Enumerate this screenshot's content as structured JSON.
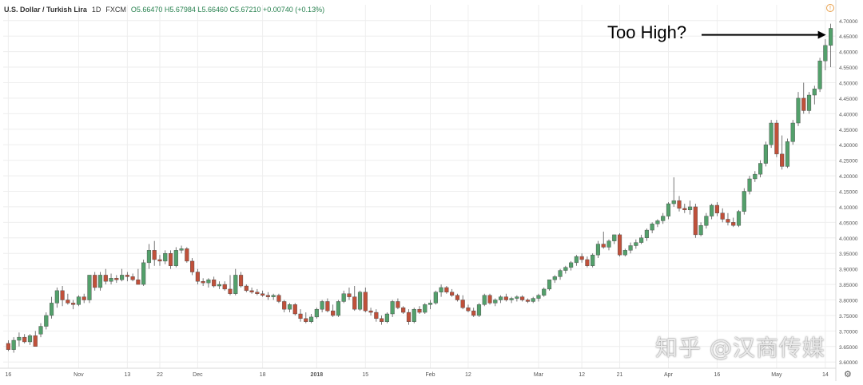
{
  "header": {
    "symbol": "U.S. Dollar / Turkish Lira",
    "interval": "1D",
    "exchange": "FXCM",
    "ohlc": "O5.66470  H5.67984  L5.66460  C5.67210  +0.00740 (+0.13%)",
    "warning_icon": "info-icon"
  },
  "annotation": {
    "text": "Too High?"
  },
  "watermark": "知乎 @汉商传媒",
  "colors": {
    "up": "#53a06b",
    "down": "#c0503a",
    "grid": "#eeeeee",
    "axis_text": "#555555"
  },
  "chart_data": {
    "type": "candlestick",
    "title": "",
    "xlabel": "",
    "ylabel": "",
    "ylim": [
      3.58,
      4.72
    ],
    "y_ticks": [
      "3.60000",
      "3.65000",
      "3.70000",
      "3.75000",
      "3.80000",
      "3.85000",
      "3.90000",
      "3.95000",
      "4.00000",
      "4.05000",
      "4.10000",
      "4.15000",
      "4.20000",
      "4.25000",
      "4.30000",
      "4.35000",
      "4.40000",
      "4.45000",
      "4.50000",
      "4.55000",
      "4.60000",
      "4.65000",
      "4.70000"
    ],
    "x_ticks": [
      "16",
      "Nov",
      "13",
      "22",
      "Dec",
      "18",
      "2018",
      "15",
      "Feb",
      "12",
      "Mar",
      "12",
      "21",
      "Apr",
      "16",
      "May",
      "14"
    ],
    "x_tick_index": [
      0,
      13,
      22,
      28,
      35,
      47,
      57,
      66,
      78,
      85,
      98,
      106,
      113,
      122,
      131,
      142,
      151
    ],
    "grid": true,
    "series": [
      {
        "o": 3.66,
        "h": 3.67,
        "l": 3.635,
        "c": 3.64
      },
      {
        "o": 3.64,
        "h": 3.68,
        "l": 3.63,
        "c": 3.67
      },
      {
        "o": 3.67,
        "h": 3.695,
        "l": 3.65,
        "c": 3.68
      },
      {
        "o": 3.68,
        "h": 3.69,
        "l": 3.66,
        "c": 3.665
      },
      {
        "o": 3.665,
        "h": 3.69,
        "l": 3.655,
        "c": 3.685
      },
      {
        "o": 3.685,
        "h": 3.7,
        "l": 3.66,
        "c": 3.65
      },
      {
        "o": 3.69,
        "h": 3.725,
        "l": 3.68,
        "c": 3.715
      },
      {
        "o": 3.715,
        "h": 3.76,
        "l": 3.705,
        "c": 3.75
      },
      {
        "o": 3.75,
        "h": 3.81,
        "l": 3.74,
        "c": 3.79
      },
      {
        "o": 3.79,
        "h": 3.84,
        "l": 3.775,
        "c": 3.83
      },
      {
        "o": 3.83,
        "h": 3.845,
        "l": 3.78,
        "c": 3.8
      },
      {
        "o": 3.8,
        "h": 3.82,
        "l": 3.785,
        "c": 3.79
      },
      {
        "o": 3.79,
        "h": 3.8,
        "l": 3.77,
        "c": 3.785
      },
      {
        "o": 3.785,
        "h": 3.815,
        "l": 3.78,
        "c": 3.81
      },
      {
        "o": 3.81,
        "h": 3.82,
        "l": 3.79,
        "c": 3.8
      },
      {
        "o": 3.8,
        "h": 3.87,
        "l": 3.79,
        "c": 3.88
      },
      {
        "o": 3.88,
        "h": 3.89,
        "l": 3.83,
        "c": 3.84
      },
      {
        "o": 3.84,
        "h": 3.89,
        "l": 3.83,
        "c": 3.88
      },
      {
        "o": 3.88,
        "h": 3.9,
        "l": 3.85,
        "c": 3.86
      },
      {
        "o": 3.86,
        "h": 3.885,
        "l": 3.85,
        "c": 3.87
      },
      {
        "o": 3.87,
        "h": 3.88,
        "l": 3.855,
        "c": 3.865
      },
      {
        "o": 3.865,
        "h": 3.9,
        "l": 3.86,
        "c": 3.88
      },
      {
        "o": 3.88,
        "h": 3.89,
        "l": 3.86,
        "c": 3.875
      },
      {
        "o": 3.875,
        "h": 3.885,
        "l": 3.86,
        "c": 3.865
      },
      {
        "o": 3.865,
        "h": 3.9,
        "l": 3.85,
        "c": 3.85
      },
      {
        "o": 3.85,
        "h": 3.93,
        "l": 3.845,
        "c": 3.92
      },
      {
        "o": 3.92,
        "h": 3.98,
        "l": 3.9,
        "c": 3.96
      },
      {
        "o": 3.96,
        "h": 3.99,
        "l": 3.91,
        "c": 3.93
      },
      {
        "o": 3.93,
        "h": 3.945,
        "l": 3.91,
        "c": 3.925
      },
      {
        "o": 3.925,
        "h": 3.96,
        "l": 3.915,
        "c": 3.95
      },
      {
        "o": 3.95,
        "h": 3.96,
        "l": 3.9,
        "c": 3.91
      },
      {
        "o": 3.91,
        "h": 3.97,
        "l": 3.905,
        "c": 3.96
      },
      {
        "o": 3.96,
        "h": 3.975,
        "l": 3.95,
        "c": 3.965
      },
      {
        "o": 3.965,
        "h": 3.97,
        "l": 3.92,
        "c": 3.925
      },
      {
        "o": 3.925,
        "h": 3.935,
        "l": 3.88,
        "c": 3.89
      },
      {
        "o": 3.89,
        "h": 3.9,
        "l": 3.85,
        "c": 3.86
      },
      {
        "o": 3.86,
        "h": 3.87,
        "l": 3.845,
        "c": 3.855
      },
      {
        "o": 3.855,
        "h": 3.87,
        "l": 3.84,
        "c": 3.865
      },
      {
        "o": 3.865,
        "h": 3.875,
        "l": 3.84,
        "c": 3.845
      },
      {
        "o": 3.845,
        "h": 3.86,
        "l": 3.835,
        "c": 3.85
      },
      {
        "o": 3.85,
        "h": 3.86,
        "l": 3.83,
        "c": 3.835
      },
      {
        "o": 3.835,
        "h": 3.88,
        "l": 3.815,
        "c": 3.82
      },
      {
        "o": 3.82,
        "h": 3.9,
        "l": 3.815,
        "c": 3.88
      },
      {
        "o": 3.88,
        "h": 3.89,
        "l": 3.84,
        "c": 3.845
      },
      {
        "o": 3.845,
        "h": 3.85,
        "l": 3.825,
        "c": 3.83
      },
      {
        "o": 3.83,
        "h": 3.84,
        "l": 3.82,
        "c": 3.825
      },
      {
        "o": 3.825,
        "h": 3.835,
        "l": 3.815,
        "c": 3.82
      },
      {
        "o": 3.82,
        "h": 3.83,
        "l": 3.81,
        "c": 3.815
      },
      {
        "o": 3.815,
        "h": 3.825,
        "l": 3.8,
        "c": 3.81
      },
      {
        "o": 3.81,
        "h": 3.82,
        "l": 3.8,
        "c": 3.815
      },
      {
        "o": 3.815,
        "h": 3.82,
        "l": 3.79,
        "c": 3.795
      },
      {
        "o": 3.795,
        "h": 3.8,
        "l": 3.76,
        "c": 3.77
      },
      {
        "o": 3.77,
        "h": 3.79,
        "l": 3.76,
        "c": 3.785
      },
      {
        "o": 3.785,
        "h": 3.79,
        "l": 3.75,
        "c": 3.755
      },
      {
        "o": 3.755,
        "h": 3.77,
        "l": 3.73,
        "c": 3.74
      },
      {
        "o": 3.74,
        "h": 3.76,
        "l": 3.725,
        "c": 3.73
      },
      {
        "o": 3.73,
        "h": 3.755,
        "l": 3.725,
        "c": 3.745
      },
      {
        "o": 3.745,
        "h": 3.775,
        "l": 3.74,
        "c": 3.77
      },
      {
        "o": 3.77,
        "h": 3.8,
        "l": 3.76,
        "c": 3.795
      },
      {
        "o": 3.795,
        "h": 3.805,
        "l": 3.76,
        "c": 3.765
      },
      {
        "o": 3.765,
        "h": 3.785,
        "l": 3.745,
        "c": 3.75
      },
      {
        "o": 3.75,
        "h": 3.8,
        "l": 3.745,
        "c": 3.795
      },
      {
        "o": 3.795,
        "h": 3.83,
        "l": 3.79,
        "c": 3.82
      },
      {
        "o": 3.82,
        "h": 3.84,
        "l": 3.8,
        "c": 3.81
      },
      {
        "o": 3.81,
        "h": 3.845,
        "l": 3.765,
        "c": 3.77
      },
      {
        "o": 3.77,
        "h": 3.83,
        "l": 3.765,
        "c": 3.825
      },
      {
        "o": 3.825,
        "h": 3.84,
        "l": 3.76,
        "c": 3.765
      },
      {
        "o": 3.765,
        "h": 3.775,
        "l": 3.75,
        "c": 3.76
      },
      {
        "o": 3.76,
        "h": 3.77,
        "l": 3.73,
        "c": 3.74
      },
      {
        "o": 3.74,
        "h": 3.75,
        "l": 3.72,
        "c": 3.73
      },
      {
        "o": 3.73,
        "h": 3.76,
        "l": 3.725,
        "c": 3.755
      },
      {
        "o": 3.755,
        "h": 3.8,
        "l": 3.745,
        "c": 3.795
      },
      {
        "o": 3.795,
        "h": 3.805,
        "l": 3.77,
        "c": 3.775
      },
      {
        "o": 3.775,
        "h": 3.78,
        "l": 3.755,
        "c": 3.76
      },
      {
        "o": 3.76,
        "h": 3.77,
        "l": 3.72,
        "c": 3.73
      },
      {
        "o": 3.73,
        "h": 3.775,
        "l": 3.725,
        "c": 3.77
      },
      {
        "o": 3.77,
        "h": 3.78,
        "l": 3.755,
        "c": 3.76
      },
      {
        "o": 3.76,
        "h": 3.79,
        "l": 3.755,
        "c": 3.785
      },
      {
        "o": 3.785,
        "h": 3.8,
        "l": 3.77,
        "c": 3.79
      },
      {
        "o": 3.79,
        "h": 3.83,
        "l": 3.785,
        "c": 3.825
      },
      {
        "o": 3.825,
        "h": 3.85,
        "l": 3.81,
        "c": 3.84
      },
      {
        "o": 3.84,
        "h": 3.845,
        "l": 3.82,
        "c": 3.825
      },
      {
        "o": 3.825,
        "h": 3.835,
        "l": 3.81,
        "c": 3.815
      },
      {
        "o": 3.815,
        "h": 3.82,
        "l": 3.795,
        "c": 3.8
      },
      {
        "o": 3.8,
        "h": 3.815,
        "l": 3.77,
        "c": 3.775
      },
      {
        "o": 3.775,
        "h": 3.785,
        "l": 3.76,
        "c": 3.765
      },
      {
        "o": 3.765,
        "h": 3.775,
        "l": 3.745,
        "c": 3.75
      },
      {
        "o": 3.75,
        "h": 3.79,
        "l": 3.745,
        "c": 3.785
      },
      {
        "o": 3.785,
        "h": 3.82,
        "l": 3.78,
        "c": 3.815
      },
      {
        "o": 3.815,
        "h": 3.82,
        "l": 3.785,
        "c": 3.79
      },
      {
        "o": 3.79,
        "h": 3.805,
        "l": 3.78,
        "c": 3.8
      },
      {
        "o": 3.8,
        "h": 3.815,
        "l": 3.79,
        "c": 3.81
      },
      {
        "o": 3.81,
        "h": 3.82,
        "l": 3.795,
        "c": 3.8
      },
      {
        "o": 3.8,
        "h": 3.81,
        "l": 3.79,
        "c": 3.805
      },
      {
        "o": 3.805,
        "h": 3.815,
        "l": 3.795,
        "c": 3.81
      },
      {
        "o": 3.81,
        "h": 3.815,
        "l": 3.795,
        "c": 3.8
      },
      {
        "o": 3.8,
        "h": 3.805,
        "l": 3.79,
        "c": 3.795
      },
      {
        "o": 3.795,
        "h": 3.81,
        "l": 3.79,
        "c": 3.805
      },
      {
        "o": 3.805,
        "h": 3.82,
        "l": 3.795,
        "c": 3.815
      },
      {
        "o": 3.815,
        "h": 3.84,
        "l": 3.81,
        "c": 3.835
      },
      {
        "o": 3.835,
        "h": 3.86,
        "l": 3.83,
        "c": 3.865
      },
      {
        "o": 3.865,
        "h": 3.88,
        "l": 3.855,
        "c": 3.875
      },
      {
        "o": 3.875,
        "h": 3.9,
        "l": 3.865,
        "c": 3.895
      },
      {
        "o": 3.895,
        "h": 3.91,
        "l": 3.885,
        "c": 3.905
      },
      {
        "o": 3.905,
        "h": 3.925,
        "l": 3.895,
        "c": 3.92
      },
      {
        "o": 3.92,
        "h": 3.945,
        "l": 3.91,
        "c": 3.94
      },
      {
        "o": 3.94,
        "h": 3.95,
        "l": 3.92,
        "c": 3.93
      },
      {
        "o": 3.93,
        "h": 3.94,
        "l": 3.905,
        "c": 3.91
      },
      {
        "o": 3.91,
        "h": 3.95,
        "l": 3.905,
        "c": 3.945
      },
      {
        "o": 3.945,
        "h": 3.99,
        "l": 3.935,
        "c": 3.98
      },
      {
        "o": 3.98,
        "h": 4.02,
        "l": 3.965,
        "c": 3.97
      },
      {
        "o": 3.97,
        "h": 3.995,
        "l": 3.96,
        "c": 3.99
      },
      {
        "o": 3.99,
        "h": 4.01,
        "l": 3.98,
        "c": 4.01
      },
      {
        "o": 4.01,
        "h": 4.015,
        "l": 3.94,
        "c": 3.945
      },
      {
        "o": 3.945,
        "h": 3.965,
        "l": 3.94,
        "c": 3.96
      },
      {
        "o": 3.96,
        "h": 3.985,
        "l": 3.95,
        "c": 3.975
      },
      {
        "o": 3.975,
        "h": 3.995,
        "l": 3.965,
        "c": 3.985
      },
      {
        "o": 3.985,
        "h": 4.01,
        "l": 3.98,
        "c": 4.0
      },
      {
        "o": 4.0,
        "h": 4.03,
        "l": 3.99,
        "c": 4.025
      },
      {
        "o": 4.025,
        "h": 4.05,
        "l": 4.015,
        "c": 4.045
      },
      {
        "o": 4.045,
        "h": 4.06,
        "l": 4.035,
        "c": 4.055
      },
      {
        "o": 4.055,
        "h": 4.08,
        "l": 4.045,
        "c": 4.07
      },
      {
        "o": 4.07,
        "h": 4.115,
        "l": 4.06,
        "c": 4.11
      },
      {
        "o": 4.11,
        "h": 4.195,
        "l": 4.1,
        "c": 4.12
      },
      {
        "o": 4.12,
        "h": 4.135,
        "l": 4.085,
        "c": 4.095
      },
      {
        "o": 4.095,
        "h": 4.11,
        "l": 4.08,
        "c": 4.09
      },
      {
        "o": 4.09,
        "h": 4.12,
        "l": 4.075,
        "c": 4.1
      },
      {
        "o": 4.1,
        "h": 4.11,
        "l": 4.0,
        "c": 4.01
      },
      {
        "o": 4.01,
        "h": 4.05,
        "l": 4.005,
        "c": 4.04
      },
      {
        "o": 4.04,
        "h": 4.08,
        "l": 4.03,
        "c": 4.07
      },
      {
        "o": 4.07,
        "h": 4.11,
        "l": 4.06,
        "c": 4.105
      },
      {
        "o": 4.105,
        "h": 4.115,
        "l": 4.07,
        "c": 4.08
      },
      {
        "o": 4.08,
        "h": 4.095,
        "l": 4.05,
        "c": 4.06
      },
      {
        "o": 4.06,
        "h": 4.08,
        "l": 4.04,
        "c": 4.05
      },
      {
        "o": 4.05,
        "h": 4.065,
        "l": 4.035,
        "c": 4.04
      },
      {
        "o": 4.04,
        "h": 4.09,
        "l": 4.035,
        "c": 4.085
      },
      {
        "o": 4.085,
        "h": 4.16,
        "l": 4.075,
        "c": 4.15
      },
      {
        "o": 4.15,
        "h": 4.2,
        "l": 4.14,
        "c": 4.19
      },
      {
        "o": 4.19,
        "h": 4.215,
        "l": 4.18,
        "c": 4.205
      },
      {
        "o": 4.205,
        "h": 4.25,
        "l": 4.195,
        "c": 4.24
      },
      {
        "o": 4.24,
        "h": 4.31,
        "l": 4.23,
        "c": 4.3
      },
      {
        "o": 4.3,
        "h": 4.38,
        "l": 4.29,
        "c": 4.37
      },
      {
        "o": 4.37,
        "h": 4.38,
        "l": 4.26,
        "c": 4.27
      },
      {
        "o": 4.27,
        "h": 4.33,
        "l": 4.22,
        "c": 4.23
      },
      {
        "o": 4.23,
        "h": 4.32,
        "l": 4.225,
        "c": 4.31
      },
      {
        "o": 4.31,
        "h": 4.38,
        "l": 4.3,
        "c": 4.37
      },
      {
        "o": 4.37,
        "h": 4.47,
        "l": 4.36,
        "c": 4.45
      },
      {
        "o": 4.45,
        "h": 4.5,
        "l": 4.4,
        "c": 4.41
      },
      {
        "o": 4.41,
        "h": 4.47,
        "l": 4.4,
        "c": 4.46
      },
      {
        "o": 4.46,
        "h": 4.49,
        "l": 4.43,
        "c": 4.48
      },
      {
        "o": 4.48,
        "h": 4.58,
        "l": 4.47,
        "c": 4.57
      },
      {
        "o": 4.57,
        "h": 4.64,
        "l": 4.54,
        "c": 4.62
      },
      {
        "o": 4.62,
        "h": 4.69,
        "l": 4.55,
        "c": 4.675
      }
    ]
  }
}
